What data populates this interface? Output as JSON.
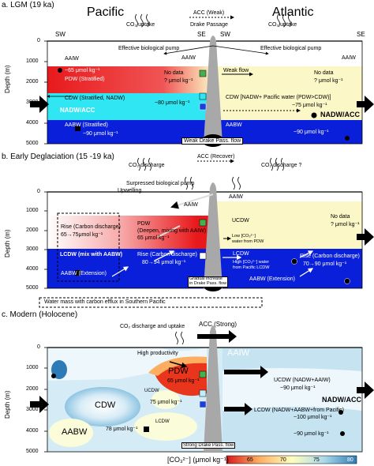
{
  "panel_a": {
    "title": "a. LGM (19 ka)",
    "header_left": "Pacific",
    "header_right": "Atlantic",
    "acc": "ACC (Weak)",
    "drake": "Drake Passage",
    "co2_left": "CO₂ uptake",
    "co2_right": "CO₂ uptake",
    "sw_left": "SW",
    "se_left": "SE",
    "sw_right": "SW",
    "se_right": "SE",
    "pump_left": "Effective biological pump",
    "pump_right": "Effective biological pump",
    "aaiw_l": "AAIW",
    "aaiw_c": "AAIW",
    "aaiw_r": "AAIW",
    "v65": "~65 μmol kg⁻¹",
    "pdw": "PDW (Stratified)",
    "nodata_c": "No data",
    "nodata_c2": "? μmol kg⁻¹",
    "weak_flow": "Weak flow",
    "nodata_r": "No data",
    "nodata_r2": "? μmol kg⁻¹",
    "cdw": "CDW (Stratified, NADW)",
    "nadw_l": "NADW/ACC",
    "v80": "~80 μmol kg⁻¹",
    "cdw_r": "CDW [NADW+ Pacific water (PDW>CDW)]",
    "v75": "~75 μmol kg⁻¹",
    "nadw_r": "NADW/ACC",
    "aabw_l": "AABW (Stratified)",
    "v90_l": "~90 μmol kg⁻¹",
    "aabw_r": "AABW",
    "v90_r": "~90 μmol kg⁻¹",
    "drake_flow": "Weak Drake Pass. flow"
  },
  "panel_b": {
    "title": "b. Early Deglaciation (15 -19 ka)",
    "co2_left": "CO₂ discharge",
    "acc": "ACC (Recover)",
    "co2_right": "CO₂ discharge ?",
    "pump": "Surpressed biological pump",
    "upwelling": "Upwelling",
    "aaiw_c": "AAIW",
    "aaiw_r": "AAIW",
    "rise_l1": "Rise (Carbon discharge)",
    "rise_l2": "65→75μmol kg⁻¹",
    "pdw1": "PDW",
    "pdw2": "(Deepen, mixing with AAIW)",
    "pdw3": "65 μmol kg⁻¹",
    "ucdw": "UCDW",
    "nodata1": "No data",
    "nodata2": "? μmol kg⁻¹",
    "lowco3": "Low [CO₃²⁻]",
    "lowco3b": "water from PDW",
    "lcdw_l": "LCDW (mix with AABW)",
    "rise_c1": "Rise (Carbon discharge)",
    "rise_c2": "80→94 μmol kg⁻¹",
    "lcdw_r": "LCDW",
    "high1": "High [CO₃²⁻] water",
    "high2": "from Pacific LCDW",
    "rise_r1": "Rise (Carbon discharge)",
    "rise_r2": "70→90 μmol kg⁻¹",
    "aabw_l": "AABW (Extension)",
    "aabw_r": "AABW (Extension)",
    "gradual1": "Gradual increase",
    "gradual2": "in Drake Pass. flow",
    "legend": "Water mass with carbon efflux in Southern Pacific"
  },
  "panel_c": {
    "title": "c. Modern (Holocene)",
    "co2": "CO₂ discharge and uptake",
    "acc": "ACC (Strong)",
    "productivity": "High productivity",
    "aaiw": "AAIW",
    "pdw": "PDW",
    "v65": "65 μmol kg⁻¹",
    "ucdw_l": "UCDW",
    "cdw": "CDW",
    "lcdw_s": "LCDW",
    "v75": "75 μmol kg⁻¹",
    "aabw": "AABW",
    "v78": "78 μmol kg⁻¹",
    "drake_flow": "Strong Drake Pass. flow",
    "ucdw_r1": "UCDW (NADW+AAIW)",
    "ucdw_r2": "~90 μmol kg⁻¹",
    "nadw": "NADW/ACC",
    "lcdw_r1": "LCDW (NADW+AABW+from Pacific)",
    "lcdw_r2": "~100 μmol kg⁻¹",
    "v90": "~90 μmol kg⁻¹"
  },
  "axis": {
    "ylabel": "Depth (m)",
    "ticks": [
      "0",
      "1000",
      "2000",
      "3000",
      "4000",
      "5000"
    ]
  },
  "colorbar": {
    "label": "[CO₃²⁻] (μmol kg⁻¹)",
    "ticks": [
      "65",
      "70",
      "75",
      "80"
    ]
  },
  "colors": {
    "pdw_red": "#e8191c",
    "cdw_cyan": "#30e6f2",
    "aabw_blue": "#0a1fd9",
    "atl_yellow": "#fcf7c6",
    "ridge_grey": "#a8a8a8"
  }
}
